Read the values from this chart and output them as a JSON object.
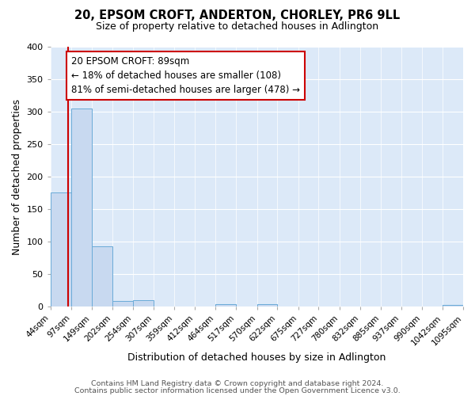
{
  "title": "20, EPSOM CROFT, ANDERTON, CHORLEY, PR6 9LL",
  "subtitle": "Size of property relative to detached houses in Adlington",
  "xlabel": "Distribution of detached houses by size in Adlington",
  "ylabel": "Number of detached properties",
  "bin_edges": [
    44,
    97,
    149,
    202,
    254,
    307,
    359,
    412,
    464,
    517,
    570,
    622,
    675,
    727,
    780,
    832,
    885,
    937,
    990,
    1042,
    1095
  ],
  "bin_labels": [
    "44sqm",
    "97sqm",
    "149sqm",
    "202sqm",
    "254sqm",
    "307sqm",
    "359sqm",
    "412sqm",
    "464sqm",
    "517sqm",
    "570sqm",
    "622sqm",
    "675sqm",
    "727sqm",
    "780sqm",
    "832sqm",
    "885sqm",
    "937sqm",
    "990sqm",
    "1042sqm",
    "1095sqm"
  ],
  "bar_heights": [
    176,
    305,
    93,
    9,
    10,
    0,
    0,
    0,
    4,
    0,
    4,
    0,
    0,
    0,
    0,
    0,
    0,
    0,
    0,
    3
  ],
  "bar_color": "#c8d9f0",
  "bar_edge_color": "#6aabd8",
  "property_line_x": 89,
  "property_line_color": "#cc0000",
  "annotation_text": "20 EPSOM CROFT: 89sqm\n← 18% of detached houses are smaller (108)\n81% of semi-detached houses are larger (478) →",
  "annotation_box_color": "#ffffff",
  "annotation_box_edge": "#cc0000",
  "ylim": [
    0,
    400
  ],
  "yticks": [
    0,
    50,
    100,
    150,
    200,
    250,
    300,
    350,
    400
  ],
  "axes_bg_color": "#dce9f8",
  "fig_bg_color": "#ffffff",
  "grid_color": "#ffffff",
  "footer1": "Contains HM Land Registry data © Crown copyright and database right 2024.",
  "footer2": "Contains public sector information licensed under the Open Government Licence v3.0."
}
